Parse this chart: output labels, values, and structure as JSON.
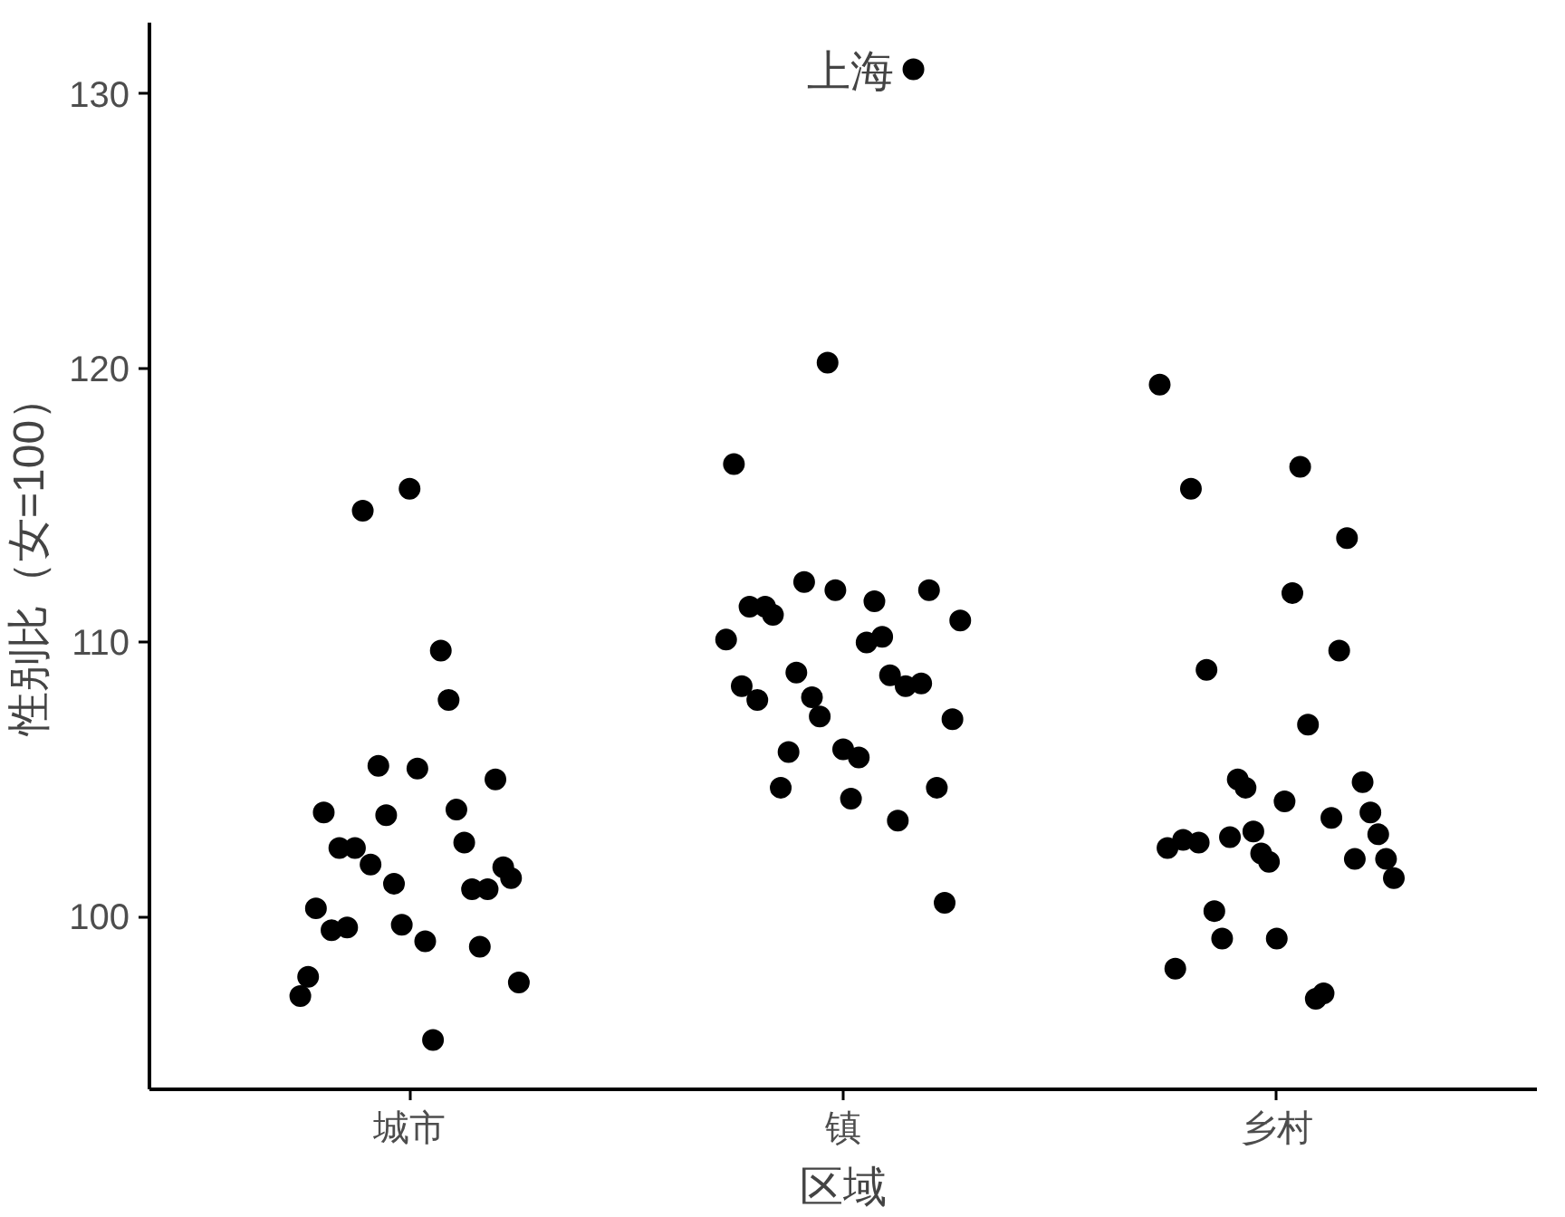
{
  "chart_data": {
    "type": "scatter",
    "xlabel": "区域",
    "ylabel": "性别比（女=100）",
    "categories": [
      "城市",
      "镇",
      "乡村"
    ],
    "ylim": [
      93.7,
      132.6
    ],
    "yticks": [
      100,
      110,
      120,
      130
    ],
    "grid": false,
    "marker": "circle",
    "annotations": [
      "上海"
    ],
    "series": [
      {
        "color": "#000000",
        "values": [
          null,
          110.1,
          119.4
        ]
      },
      {
        "color": "#000000",
        "values": [
          97.1,
          116.5,
          102.5
        ]
      },
      {
        "color": "#000000",
        "values": [
          97.8,
          108.4,
          98.1
        ]
      },
      {
        "color": "#000000",
        "values": [
          100.3,
          111.3,
          102.8
        ]
      },
      {
        "color": "#000000",
        "values": [
          103.8,
          107.9,
          115.6
        ]
      },
      {
        "color": "#000000",
        "values": [
          99.5,
          111.3,
          102.7
        ]
      },
      {
        "color": "#000000",
        "values": [
          102.5,
          111.0,
          109.0
        ]
      },
      {
        "color": "#000000",
        "values": [
          99.6,
          104.7,
          100.2
        ]
      },
      {
        "color": "#000000",
        "values": [
          102.5,
          106.0,
          99.2
        ]
      },
      {
        "color": "#000000",
        "values": [
          114.8,
          108.9,
          102.9
        ]
      },
      {
        "color": "#000000",
        "values": [
          101.9,
          112.2,
          105.0
        ]
      },
      {
        "color": "#000000",
        "values": [
          105.5,
          108.0,
          104.7
        ]
      },
      {
        "color": "#000000",
        "values": [
          103.7,
          107.3,
          103.1
        ]
      },
      {
        "color": "#000000",
        "values": [
          101.2,
          120.2,
          102.3
        ]
      },
      {
        "color": "#000000",
        "values": [
          99.7,
          111.9,
          102.0
        ]
      },
      {
        "color": "#000000",
        "values": [
          115.6,
          106.1,
          99.2
        ]
      },
      {
        "color": "#000000",
        "values": [
          105.4,
          104.3,
          104.2
        ]
      },
      {
        "color": "#000000",
        "values": [
          99.1,
          105.8,
          111.8
        ]
      },
      {
        "color": "#000000",
        "values": [
          95.5,
          110.0,
          116.4
        ]
      },
      {
        "color": "#000000",
        "values": [
          109.7,
          111.5,
          107.0
        ]
      },
      {
        "color": "#000000",
        "values": [
          107.9,
          110.2,
          97.0
        ]
      },
      {
        "color": "#000000",
        "values": [
          103.9,
          108.8,
          97.2
        ]
      },
      {
        "color": "#000000",
        "values": [
          102.7,
          103.5,
          103.6
        ]
      },
      {
        "color": "#000000",
        "values": [
          101.0,
          108.4,
          109.7
        ]
      },
      {
        "color": "#000000",
        "values": [
          98.9,
          130.9,
          113.8
        ]
      },
      {
        "color": "#000000",
        "values": [
          101.0,
          108.5,
          102.1
        ]
      },
      {
        "color": "#000000",
        "values": [
          105.0,
          111.9,
          104.9
        ]
      },
      {
        "color": "#000000",
        "values": [
          101.8,
          104.7,
          103.8
        ]
      },
      {
        "color": "#000000",
        "values": [
          101.4,
          100.5,
          103.0
        ]
      },
      {
        "color": "#000000",
        "values": [
          97.6,
          107.2,
          102.1
        ]
      },
      {
        "color": "#000000",
        "values": [
          null,
          110.8,
          101.4
        ]
      }
    ]
  }
}
